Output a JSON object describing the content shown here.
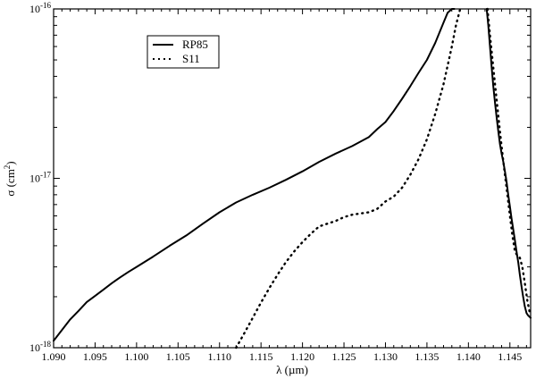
{
  "chart_data": {
    "type": "line",
    "title": "",
    "xlabel": "λ (µm)",
    "ylabel": "σ (cm",
    "ylabel_sup": "2",
    "ylabel_close": ")",
    "xlim": [
      1.09,
      1.1475
    ],
    "ylim": [
      1e-18,
      1e-16
    ],
    "yscale": "log",
    "grid": false,
    "legend_position": "top-left",
    "x_ticks": [
      1.09,
      1.095,
      1.1,
      1.105,
      1.11,
      1.115,
      1.12,
      1.125,
      1.13,
      1.135,
      1.14,
      1.145
    ],
    "x_tick_labels": [
      "1.090",
      "1.095",
      "1.100",
      "1.105",
      "1.110",
      "1.115",
      "1.120",
      "1.125",
      "1.130",
      "1.135",
      "1.140",
      "1.145"
    ],
    "y_ticks": [
      {
        "value": 1e-18,
        "base": "10",
        "exp": "-18"
      },
      {
        "value": 1e-17,
        "base": "10",
        "exp": "-17"
      },
      {
        "value": 1e-16,
        "base": "10",
        "exp": "-16"
      }
    ],
    "series": [
      {
        "name": "RP85",
        "style": "solid",
        "color": "#000000",
        "x": [
          1.09,
          1.091,
          1.092,
          1.093,
          1.094,
          1.095,
          1.096,
          1.097,
          1.098,
          1.099,
          1.1,
          1.102,
          1.104,
          1.106,
          1.108,
          1.11,
          1.112,
          1.114,
          1.116,
          1.118,
          1.12,
          1.122,
          1.124,
          1.126,
          1.128,
          1.129,
          1.13,
          1.131,
          1.132,
          1.133,
          1.134,
          1.135,
          1.136,
          1.137,
          1.1375,
          1.138,
          1.1383
        ],
        "y": [
          1.1e-18,
          1.27e-18,
          1.47e-18,
          1.65e-18,
          1.86e-18,
          2.02e-18,
          2.2e-18,
          2.4e-18,
          2.6e-18,
          2.8e-18,
          3e-18,
          3.45e-18,
          4e-18,
          4.6e-18,
          5.4e-18,
          6.3e-18,
          7.2e-18,
          8e-18,
          8.8e-18,
          9.8e-18,
          1.1e-17,
          1.25e-17,
          1.4e-17,
          1.55e-17,
          1.75e-17,
          1.95e-17,
          2.15e-17,
          2.5e-17,
          2.95e-17,
          3.5e-17,
          4.2e-17,
          5e-17,
          6.3e-17,
          8.3e-17,
          9.5e-17,
          1e-16,
          1e-16
        ]
      },
      {
        "name": "RP85",
        "style": "solid",
        "color": "#000000",
        "x": [
          1.1422,
          1.1424,
          1.1426,
          1.1428,
          1.143,
          1.1432,
          1.1434,
          1.1436,
          1.1438,
          1.144,
          1.1442,
          1.1444,
          1.1446,
          1.1448,
          1.145,
          1.1452,
          1.1454,
          1.1456,
          1.1458,
          1.146,
          1.1462,
          1.1464,
          1.1466,
          1.1468,
          1.147,
          1.1472,
          1.1475
        ],
        "y": [
          1e-16,
          8e-17,
          6e-17,
          4.5e-17,
          3.5e-17,
          2.8e-17,
          2.3e-17,
          1.9e-17,
          1.6e-17,
          1.4e-17,
          1.25e-17,
          1.1e-17,
          9.5e-18,
          8e-18,
          6.8e-18,
          5.8e-18,
          5e-18,
          4.3e-18,
          3.7e-18,
          3.2e-18,
          2.7e-18,
          2.3e-18,
          2e-18,
          1.75e-18,
          1.6e-18,
          1.55e-18,
          1.5e-18
        ]
      },
      {
        "name": "S11",
        "style": "dotted",
        "color": "#000000",
        "x": [
          1.112,
          1.113,
          1.114,
          1.115,
          1.116,
          1.117,
          1.118,
          1.119,
          1.12,
          1.121,
          1.122,
          1.123,
          1.124,
          1.125,
          1.126,
          1.127,
          1.128,
          1.129,
          1.13,
          1.131,
          1.132,
          1.133,
          1.134,
          1.135,
          1.136,
          1.137,
          1.138,
          1.1385,
          1.139
        ],
        "y": [
          1e-18,
          1.22e-18,
          1.5e-18,
          1.85e-18,
          2.25e-18,
          2.7e-18,
          3.2e-18,
          3.7e-18,
          4.2e-18,
          4.7e-18,
          5.2e-18,
          5.4e-18,
          5.6e-18,
          5.9e-18,
          6.1e-18,
          6.2e-18,
          6.3e-18,
          6.6e-18,
          7.3e-18,
          7.8e-18,
          8.8e-18,
          1.05e-17,
          1.3e-17,
          1.7e-17,
          2.4e-17,
          3.6e-17,
          6e-17,
          8e-17,
          1e-16
        ]
      },
      {
        "name": "S11",
        "style": "dotted",
        "color": "#000000",
        "x": [
          1.1423,
          1.1426,
          1.1429,
          1.1432,
          1.1435,
          1.1438,
          1.1441,
          1.1444,
          1.1447,
          1.145,
          1.1453,
          1.1456,
          1.1459,
          1.1462,
          1.1465,
          1.1468,
          1.1471,
          1.1474
        ],
        "y": [
          1e-16,
          7e-17,
          5e-17,
          3.6e-17,
          2.6e-17,
          1.9e-17,
          1.4e-17,
          1.05e-17,
          8e-18,
          6e-18,
          4.6e-18,
          3.7e-18,
          3.5e-18,
          3.4e-18,
          3e-18,
          2.4e-18,
          1.9e-18,
          1.6e-18
        ]
      }
    ],
    "legend": [
      {
        "label": "RP85",
        "style": "solid"
      },
      {
        "label": "S11",
        "style": "dotted"
      }
    ]
  }
}
